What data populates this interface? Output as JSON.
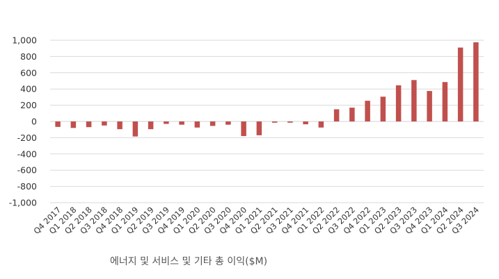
{
  "chart_data": {
    "type": "bar",
    "title": "",
    "caption": "에너지 및 서비스 및 기타 총 이익($M)",
    "xlabel": "",
    "ylabel": "",
    "ylim": [
      -1000,
      1000
    ],
    "yticks": [
      1000,
      800,
      600,
      400,
      200,
      0,
      -200,
      -400,
      -600,
      -800,
      -1000
    ],
    "ytick_labels": [
      "1,000",
      "800",
      "600",
      "400",
      "200",
      "0",
      "-200",
      "-400",
      "-600",
      "-800",
      "-1,000"
    ],
    "grid": true,
    "bar_color": "#c0504d",
    "grid_color": "#d9d9d9",
    "categories": [
      "Q4 2017",
      "Q1 2018",
      "Q2 2018",
      "Q3 2018",
      "Q4 2018",
      "Q1 2019",
      "Q2 2019",
      "Q3 2019",
      "Q4 2019",
      "Q1 2020",
      "Q2 2020",
      "Q3 2020",
      "Q4 2020",
      "Q1 2021",
      "Q2 2021",
      "Q3 2021",
      "Q4 2021",
      "Q1 2022",
      "Q2 2022",
      "Q3 2022",
      "Q4 2022",
      "Q1 2023",
      "Q2 2023",
      "Q3 2023",
      "Q4 2023",
      "Q1 2024",
      "Q2 2024",
      "Q3 2024"
    ],
    "values": [
      -67,
      -80,
      -70,
      -50,
      -95,
      -185,
      -95,
      -30,
      -40,
      -75,
      -55,
      -40,
      -180,
      -170,
      -15,
      -15,
      -35,
      -75,
      150,
      170,
      255,
      305,
      445,
      510,
      375,
      485,
      910,
      975
    ]
  }
}
